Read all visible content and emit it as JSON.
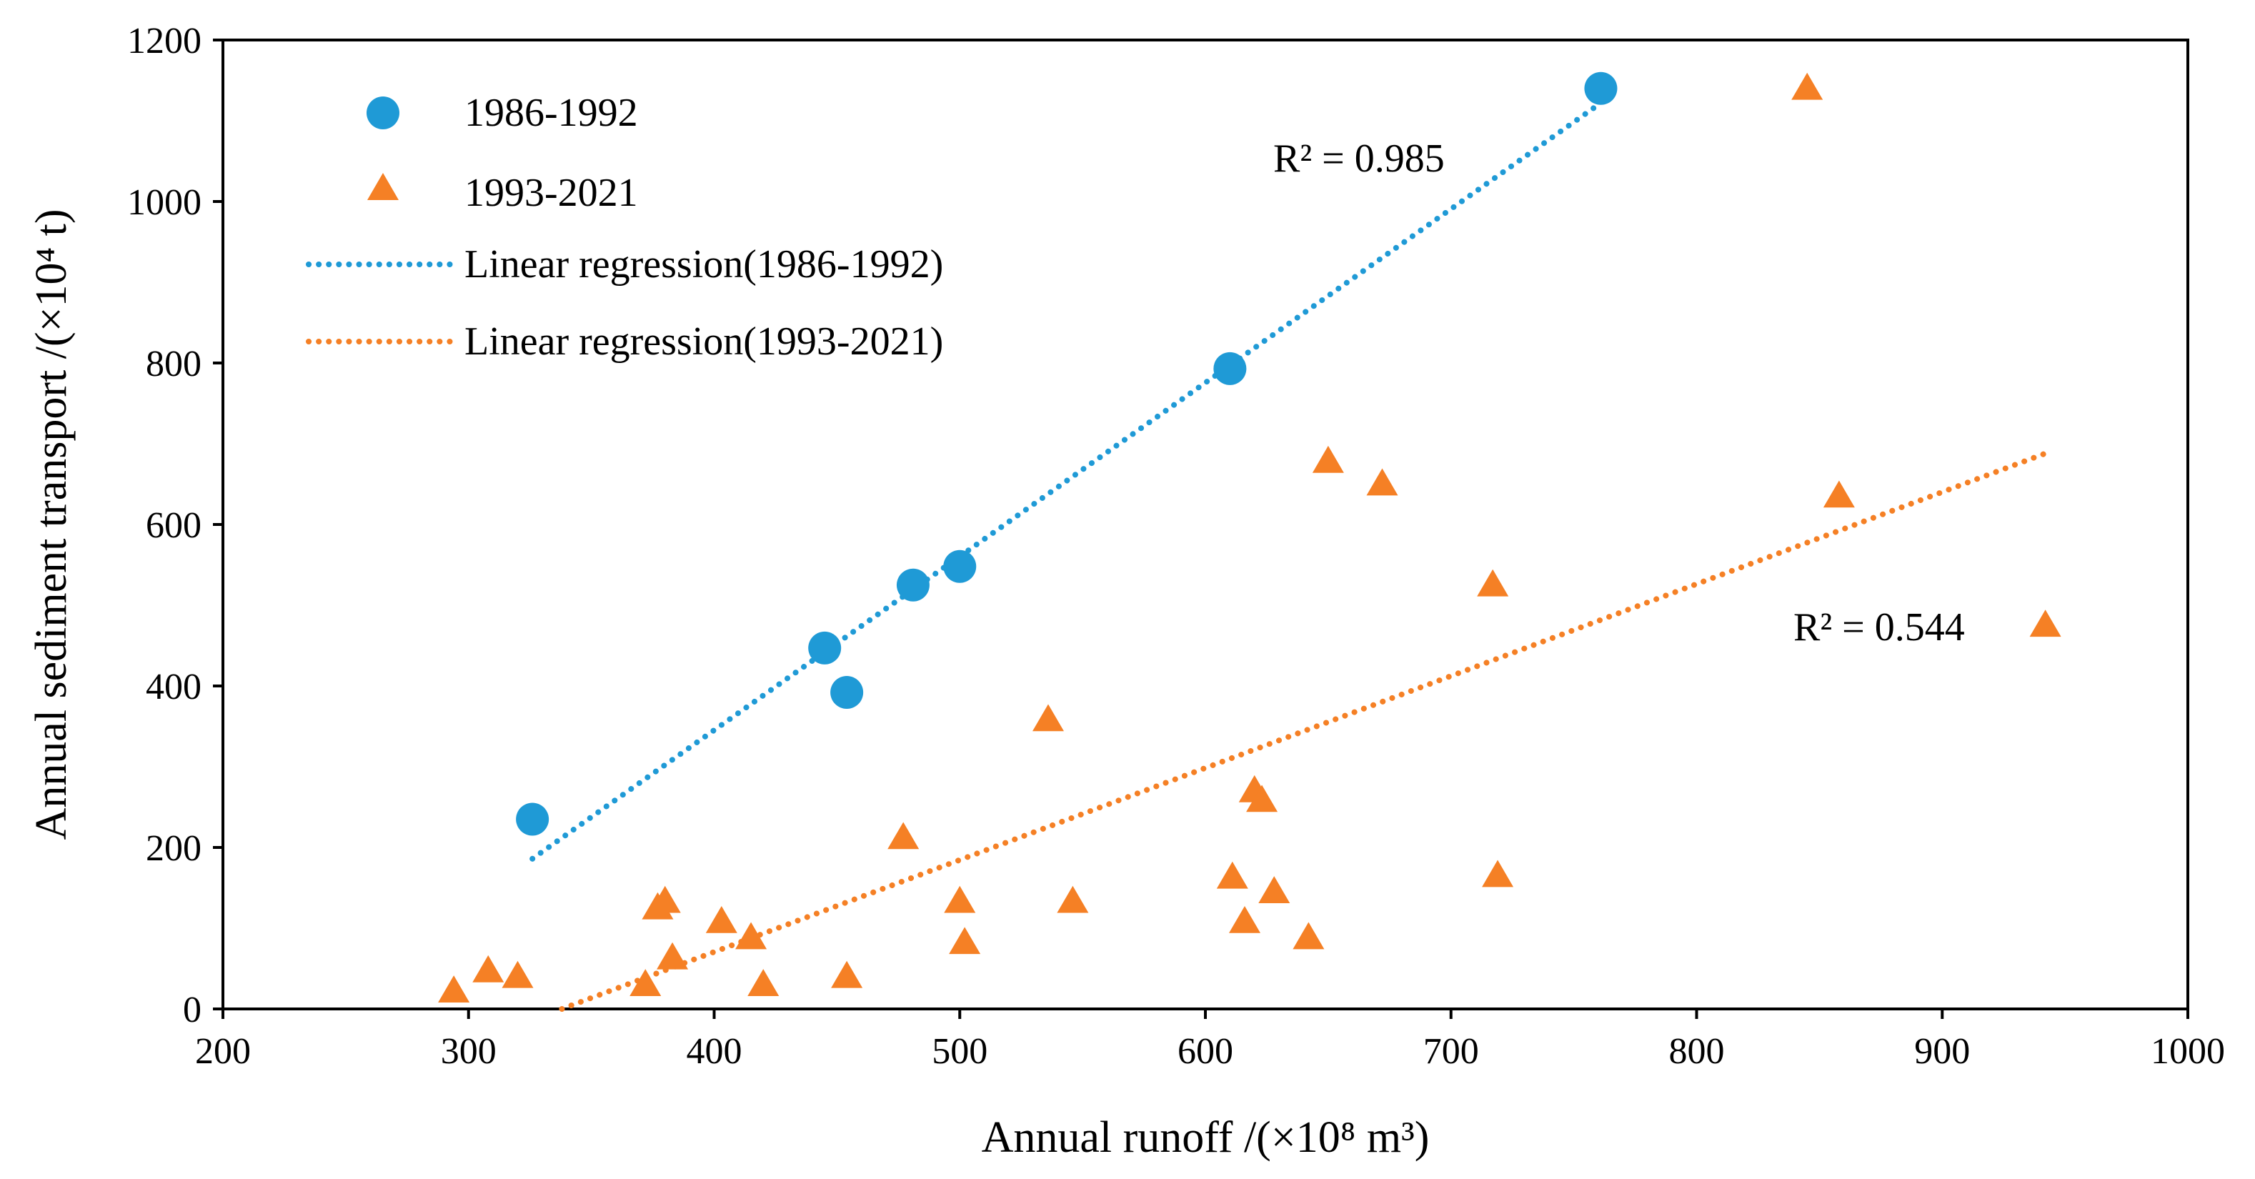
{
  "chart_data": {
    "type": "scatter",
    "title": "",
    "xlabel": "Annual runoff /(×10⁸ m³)",
    "ylabel": "Annual sediment transport /(×10⁴ t)",
    "xlim": [
      200,
      1000
    ],
    "ylim": [
      0,
      1200
    ],
    "xticks": [
      200,
      300,
      400,
      500,
      600,
      700,
      800,
      900,
      1000
    ],
    "yticks": [
      0,
      200,
      400,
      600,
      800,
      1000,
      1200
    ],
    "grid": false,
    "legend_position": "top-left",
    "series": [
      {
        "name": "1986-1992",
        "marker": "circle",
        "color": "#1F9AD6",
        "points": [
          {
            "x": 326,
            "y": 235
          },
          {
            "x": 445,
            "y": 447
          },
          {
            "x": 454,
            "y": 392
          },
          {
            "x": 481,
            "y": 525
          },
          {
            "x": 500,
            "y": 548
          },
          {
            "x": 610,
            "y": 793
          },
          {
            "x": 761,
            "y": 1140
          }
        ]
      },
      {
        "name": "1993-2021",
        "marker": "triangle",
        "color": "#F58025",
        "points": [
          {
            "x": 294,
            "y": 22
          },
          {
            "x": 308,
            "y": 47
          },
          {
            "x": 320,
            "y": 40
          },
          {
            "x": 372,
            "y": 30
          },
          {
            "x": 377,
            "y": 125
          },
          {
            "x": 380,
            "y": 133
          },
          {
            "x": 383,
            "y": 63
          },
          {
            "x": 403,
            "y": 108
          },
          {
            "x": 415,
            "y": 88
          },
          {
            "x": 420,
            "y": 30
          },
          {
            "x": 454,
            "y": 40
          },
          {
            "x": 477,
            "y": 212
          },
          {
            "x": 500,
            "y": 133
          },
          {
            "x": 502,
            "y": 82
          },
          {
            "x": 536,
            "y": 358
          },
          {
            "x": 546,
            "y": 133
          },
          {
            "x": 611,
            "y": 163
          },
          {
            "x": 616,
            "y": 108
          },
          {
            "x": 620,
            "y": 270
          },
          {
            "x": 623,
            "y": 258
          },
          {
            "x": 628,
            "y": 145
          },
          {
            "x": 642,
            "y": 88
          },
          {
            "x": 650,
            "y": 678
          },
          {
            "x": 672,
            "y": 650
          },
          {
            "x": 717,
            "y": 525
          },
          {
            "x": 719,
            "y": 165
          },
          {
            "x": 845,
            "y": 1140
          },
          {
            "x": 858,
            "y": 635
          },
          {
            "x": 942,
            "y": 475
          }
        ]
      }
    ],
    "trendlines": [
      {
        "name": "Linear regression(1986-1992)",
        "color": "#1F9AD6",
        "style": "dotted",
        "x_start": 326,
        "y_start": 186,
        "x_end": 761,
        "y_end": 1122,
        "r2_label": "R² = 0.985"
      },
      {
        "name": "Linear regression(1993-2021)",
        "color": "#F58025",
        "style": "dotted",
        "x_start": 338,
        "y_start": 0,
        "x_end": 942,
        "y_end": 688,
        "r2_label": "R² = 0.544"
      }
    ]
  }
}
